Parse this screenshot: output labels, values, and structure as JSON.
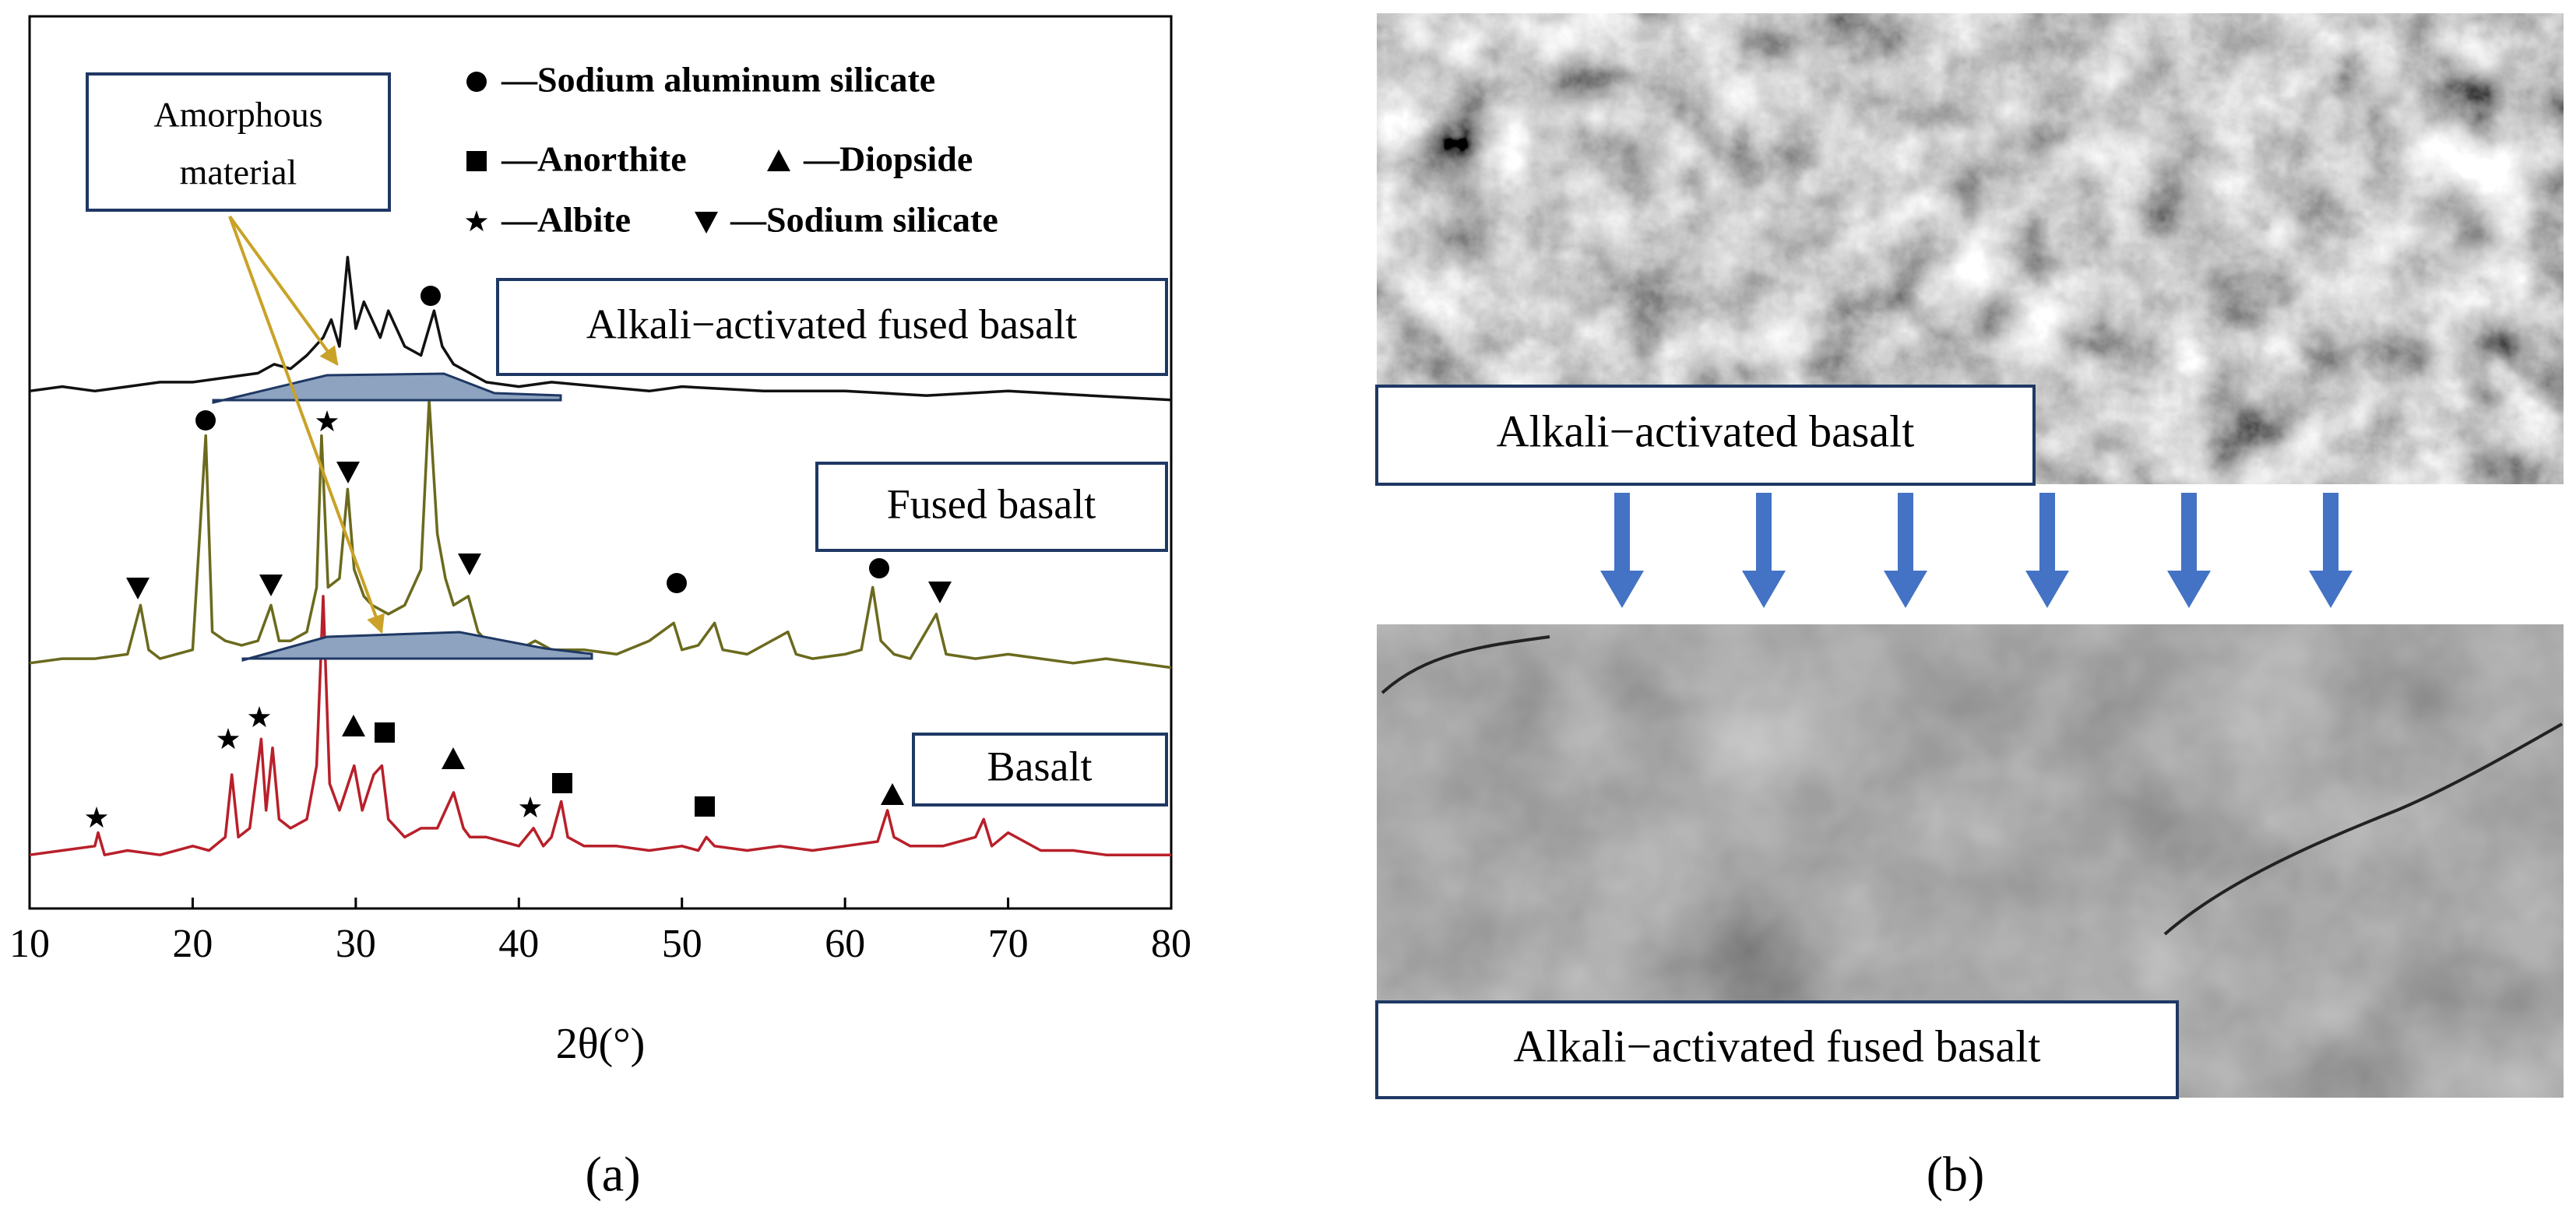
{
  "chart_data": {
    "type": "line",
    "xlabel": "2θ(°)",
    "xlim": [
      10,
      80
    ],
    "xticks": [
      10,
      20,
      30,
      40,
      50,
      60,
      70,
      80
    ],
    "ylim": [
      0,
      100
    ],
    "annotation_lines": [
      "Amorphous",
      "material"
    ],
    "legend_phases": [
      "—Sodium aluminum silicate",
      "—Anorthite",
      "—Diopside",
      "—Albite",
      "—Sodium silicate"
    ],
    "series": [
      {
        "name": "Alkali−activated fused basalt",
        "color": "#111111",
        "x": [
          10,
          12,
          14,
          16,
          18,
          20,
          22,
          24,
          25,
          26,
          27,
          28,
          28.5,
          29,
          29.5,
          30,
          30.5,
          31,
          31.5,
          32,
          33,
          34,
          34.8,
          35.3,
          36,
          37,
          38,
          40,
          42,
          45,
          48,
          50,
          55,
          60,
          65,
          70,
          75,
          80
        ],
        "values": [
          58,
          58.5,
          58,
          58.5,
          59,
          59,
          59.5,
          60,
          61,
          60.5,
          62,
          64,
          66,
          63,
          73,
          65,
          68,
          66,
          64,
          67,
          63,
          62,
          67,
          63,
          61,
          60,
          59,
          58.5,
          59,
          58.5,
          58,
          58.5,
          58,
          58,
          57.5,
          58,
          57.5,
          57
        ]
      },
      {
        "name": "Fused basalt",
        "color": "#6b6a1e",
        "x": [
          10,
          12,
          14,
          16,
          16.8,
          17.3,
          18,
          20,
          20.8,
          21.2,
          22,
          23,
          24,
          24.8,
          25.3,
          26,
          27,
          27.6,
          27.9,
          28.3,
          29,
          29.5,
          29.9,
          30.5,
          31,
          32,
          33,
          34,
          34.5,
          35,
          35.5,
          36,
          36.9,
          37.5,
          38,
          39,
          40,
          41,
          42,
          44,
          46,
          48,
          49.5,
          50,
          51,
          52,
          52.5,
          54,
          56.5,
          57,
          58,
          60,
          61,
          61.7,
          62.2,
          63,
          64,
          65.6,
          66.2,
          68,
          70,
          72,
          74,
          76,
          78,
          80
        ],
        "values": [
          27.5,
          28,
          28,
          28.5,
          34,
          29,
          28,
          29,
          53,
          31,
          30,
          29.5,
          30,
          34,
          30,
          30,
          31,
          36,
          53,
          36,
          37,
          47,
          38,
          35,
          34,
          33,
          34,
          38,
          57,
          42,
          37,
          34,
          35,
          31,
          30,
          29.5,
          29,
          30,
          29,
          29,
          28.5,
          30,
          32,
          29,
          29.5,
          32,
          29,
          28.5,
          31,
          28.5,
          28,
          28.5,
          29,
          36,
          30,
          28.5,
          28,
          33,
          28.5,
          28,
          28.5,
          28,
          27.5,
          28,
          27.5,
          27
        ]
      },
      {
        "name": "Basalt",
        "color": "#b8202a",
        "x": [
          10,
          12,
          14,
          14.2,
          14.6,
          16,
          18,
          20,
          21,
          22,
          22.4,
          22.8,
          23.5,
          24.2,
          24.5,
          24.9,
          25.3,
          26,
          27,
          27.6,
          28,
          28.4,
          29,
          29.9,
          30.4,
          31.1,
          31.6,
          32,
          33,
          34,
          35,
          36,
          36.6,
          37,
          38,
          39,
          40,
          40.9,
          41.5,
          42,
          42.6,
          43,
          44,
          46,
          48,
          50,
          51,
          51.5,
          52,
          54,
          56,
          58,
          60,
          62,
          62.6,
          63,
          64,
          66,
          68,
          68.5,
          69,
          70,
          72,
          74,
          76,
          78,
          80
        ],
        "values": [
          6,
          6.5,
          7,
          8.5,
          6,
          6.5,
          6,
          7,
          6.5,
          8,
          15,
          8,
          9,
          19,
          11,
          18,
          10,
          9,
          10,
          16,
          35,
          14,
          11,
          16,
          11,
          15,
          16,
          10,
          8,
          9,
          9,
          13,
          9,
          8,
          8,
          7.5,
          7,
          9,
          7,
          8,
          12,
          8,
          7,
          7,
          6.5,
          7,
          6.5,
          8,
          7,
          6.5,
          7,
          6.5,
          7,
          7.5,
          11,
          8,
          7,
          7,
          8,
          10,
          7,
          8.5,
          6.5,
          6.5,
          6,
          6,
          6
        ]
      }
    ]
  },
  "panel_b": {
    "top_label": "Alkali−activated basalt",
    "bottom_label": "Alkali−activated fused basalt"
  },
  "captions": [
    "(a)",
    "(b)"
  ]
}
